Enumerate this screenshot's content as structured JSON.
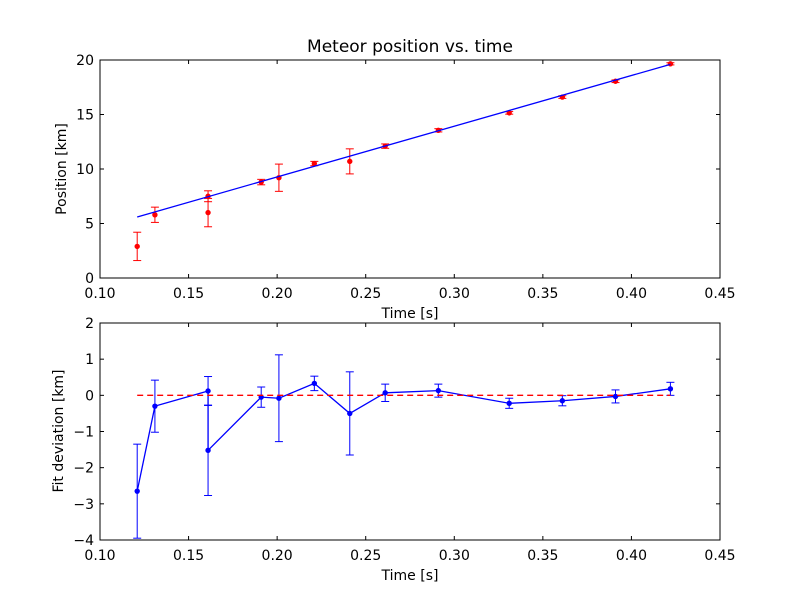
{
  "chart_data": [
    {
      "type": "scatter",
      "title": "Meteor position vs. time",
      "xlabel": "Time [s]",
      "ylabel": "Position [km]",
      "xlim": [
        0.1,
        0.45
      ],
      "ylim": [
        0,
        20
      ],
      "xticks": [
        0.1,
        0.15,
        0.2,
        0.25,
        0.3,
        0.35,
        0.4,
        0.45
      ],
      "xtick_labels": [
        "0.10",
        "0.15",
        "0.20",
        "0.25",
        "0.30",
        "0.35",
        "0.40",
        "0.45"
      ],
      "yticks": [
        0,
        5,
        10,
        15,
        20
      ],
      "ytick_labels": [
        "0",
        "5",
        "10",
        "15",
        "20"
      ],
      "grid": false,
      "series": [
        {
          "kind": "errorbar-points",
          "color": "#ff0000",
          "points": [
            {
              "x": 0.121,
              "y": 2.9,
              "err": 1.3
            },
            {
              "x": 0.131,
              "y": 5.8,
              "err": 0.7
            },
            {
              "x": 0.161,
              "y": 7.5,
              "err": 0.5
            },
            {
              "x": 0.161,
              "y": 6.0,
              "err": 1.3
            },
            {
              "x": 0.191,
              "y": 8.8,
              "err": 0.25
            },
            {
              "x": 0.201,
              "y": 9.2,
              "err": 1.25
            },
            {
              "x": 0.221,
              "y": 10.5,
              "err": 0.2
            },
            {
              "x": 0.241,
              "y": 10.7,
              "err": 1.15
            },
            {
              "x": 0.261,
              "y": 12.1,
              "err": 0.2
            },
            {
              "x": 0.291,
              "y": 13.55,
              "err": 0.15
            },
            {
              "x": 0.331,
              "y": 15.15,
              "err": 0.12
            },
            {
              "x": 0.361,
              "y": 16.6,
              "err": 0.12
            },
            {
              "x": 0.391,
              "y": 18.05,
              "err": 0.12
            },
            {
              "x": 0.422,
              "y": 19.65,
              "err": 0.1
            }
          ]
        },
        {
          "kind": "fit-line",
          "color": "#0000ff",
          "x": [
            0.121,
            0.422
          ],
          "y": [
            5.6,
            19.6
          ]
        }
      ]
    },
    {
      "type": "line",
      "title": "",
      "xlabel": "Time [s]",
      "ylabel": "Fit deviation [km]",
      "xlim": [
        0.1,
        0.45
      ],
      "ylim": [
        -4,
        2
      ],
      "xticks": [
        0.1,
        0.15,
        0.2,
        0.25,
        0.3,
        0.35,
        0.4,
        0.45
      ],
      "xtick_labels": [
        "0.10",
        "0.15",
        "0.20",
        "0.25",
        "0.30",
        "0.35",
        "0.40",
        "0.45"
      ],
      "yticks": [
        -4,
        -3,
        -2,
        -1,
        0,
        1,
        2
      ],
      "ytick_labels": [
        "−4",
        "−3",
        "−2",
        "−1",
        "0",
        "1",
        "2"
      ],
      "grid": false,
      "series": [
        {
          "kind": "errorbar-line",
          "color": "#0000ff",
          "points": [
            {
              "x": 0.121,
              "y": -2.65,
              "err": 1.3
            },
            {
              "x": 0.131,
              "y": -0.3,
              "err": 0.72
            },
            {
              "x": 0.161,
              "y": 0.12,
              "err": 0.4
            },
            {
              "x": 0.161,
              "y": -1.52,
              "err": 1.25
            },
            {
              "x": 0.191,
              "y": -0.05,
              "err": 0.28
            },
            {
              "x": 0.201,
              "y": -0.08,
              "err": 1.2
            },
            {
              "x": 0.221,
              "y": 0.33,
              "err": 0.2
            },
            {
              "x": 0.241,
              "y": -0.5,
              "err": 1.15
            },
            {
              "x": 0.261,
              "y": 0.07,
              "err": 0.24
            },
            {
              "x": 0.291,
              "y": 0.13,
              "err": 0.18
            },
            {
              "x": 0.331,
              "y": -0.22,
              "err": 0.14
            },
            {
              "x": 0.361,
              "y": -0.15,
              "err": 0.14
            },
            {
              "x": 0.391,
              "y": -0.03,
              "err": 0.18
            },
            {
              "x": 0.422,
              "y": 0.18,
              "err": 0.18
            }
          ]
        },
        {
          "kind": "zero-line",
          "color": "#ff0000",
          "dashed": true,
          "x": [
            0.121,
            0.422
          ],
          "y": [
            0,
            0
          ]
        }
      ]
    }
  ]
}
